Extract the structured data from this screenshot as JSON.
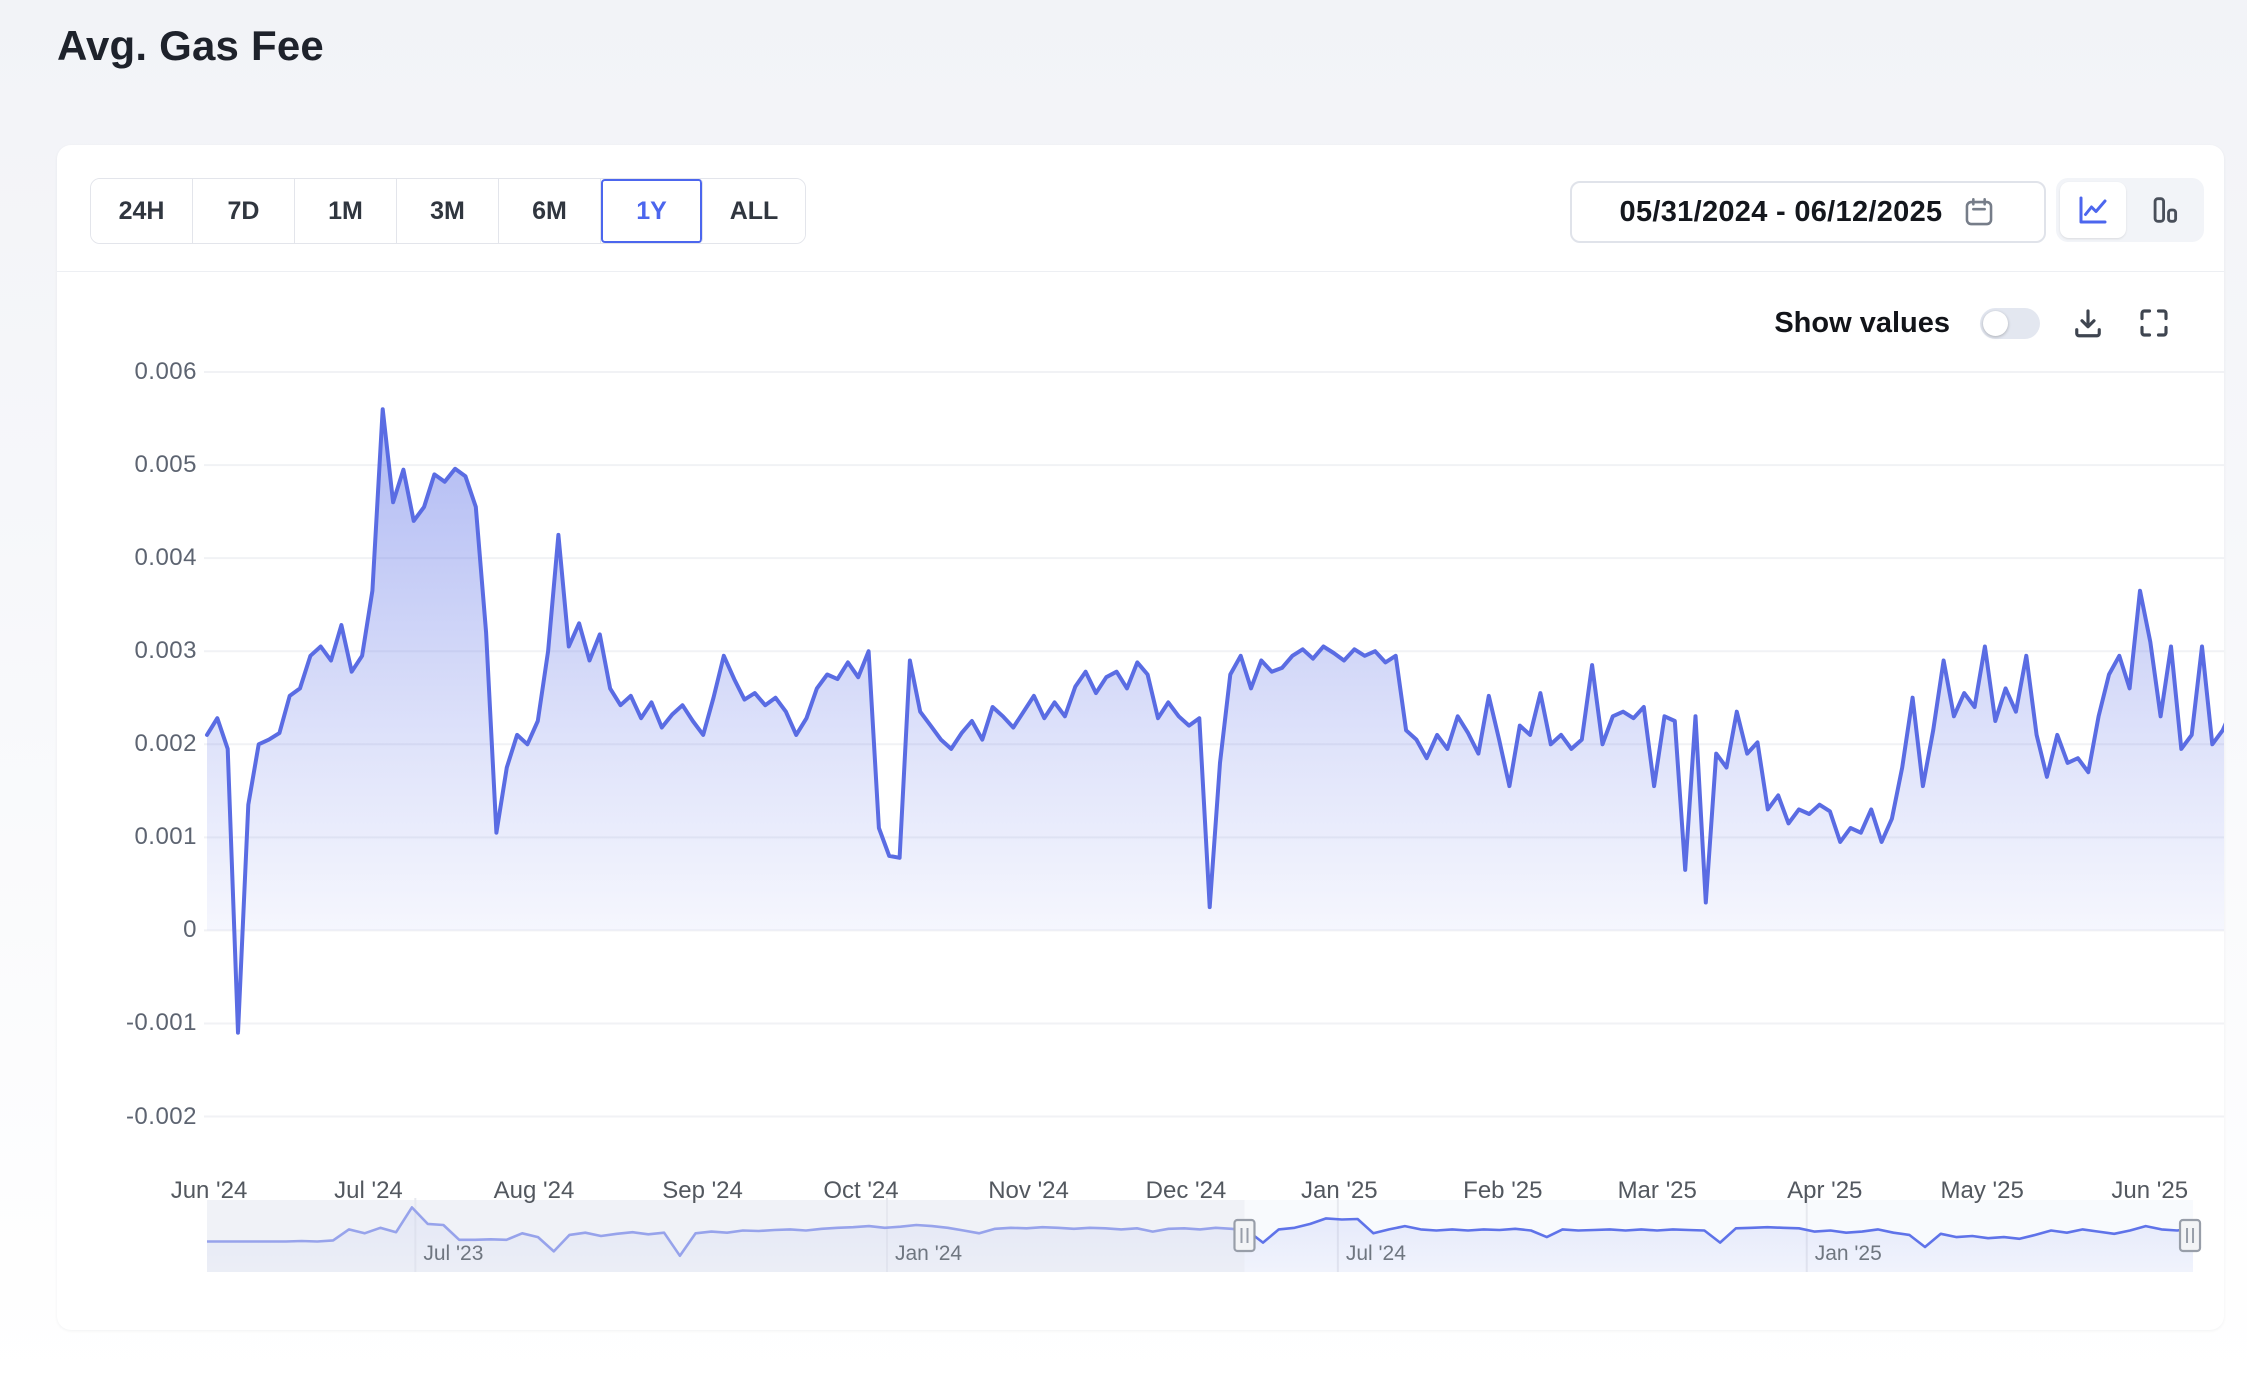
{
  "page": {
    "title": "Avg. Gas Fee"
  },
  "toolbar": {
    "ranges": [
      "24H",
      "7D",
      "1M",
      "3M",
      "6M",
      "1Y",
      "ALL"
    ],
    "active_range": "1Y",
    "date_range": "05/31/2024 - 06/12/2025",
    "chart_type_active": "line"
  },
  "controls": {
    "show_values_label": "Show values",
    "show_values_on": false
  },
  "colors": {
    "accent": "#4c66ee",
    "line": "#5a6ce3",
    "fill_top": "rgba(91,111,230,0.52)",
    "fill_bottom": "rgba(91,111,230,0.06)",
    "nav_line": "#5f73e9",
    "grid": "#f1f2f5"
  },
  "chart_data": {
    "type": "area",
    "title": "Avg. Gas Fee",
    "xlabel": "",
    "ylabel": "",
    "ylim": [
      -0.002,
      0.006
    ],
    "grid": true,
    "legend": "none",
    "y_ticks": [
      "0.006",
      "0.005",
      "0.004",
      "0.003",
      "0.002",
      "0.001",
      "0",
      "-0.001",
      "-0.002"
    ],
    "x_ticks": [
      {
        "label": "Jun '24",
        "pos": 0.001
      },
      {
        "label": "Jul '24",
        "pos": 0.0797
      },
      {
        "label": "Aug '24",
        "pos": 0.1614
      },
      {
        "label": "Sep '24",
        "pos": 0.2446
      },
      {
        "label": "Oct '24",
        "pos": 0.3228
      },
      {
        "label": "Nov '24",
        "pos": 0.4055
      },
      {
        "label": "Dec '24",
        "pos": 0.4832
      },
      {
        "label": "Jan '25",
        "pos": 0.5589
      },
      {
        "label": "Feb '25",
        "pos": 0.6396
      },
      {
        "label": "Mar '25",
        "pos": 0.7158
      },
      {
        "label": "Apr '25",
        "pos": 0.7985
      },
      {
        "label": "May '25",
        "pos": 0.8762
      },
      {
        "label": "Jun '25",
        "pos": 0.9589
      }
    ],
    "series": [
      {
        "name": "Avg. Gas Fee",
        "date_start": "05/31/2024",
        "date_end": "06/12/2025",
        "values": [
          0.0021,
          0.00228,
          0.00195,
          -0.0011,
          0.00135,
          0.002,
          0.00205,
          0.00212,
          0.00252,
          0.0026,
          0.00295,
          0.00305,
          0.0029,
          0.00328,
          0.00278,
          0.00295,
          0.00365,
          0.0056,
          0.0046,
          0.00495,
          0.0044,
          0.00455,
          0.0049,
          0.00482,
          0.00496,
          0.00488,
          0.00455,
          0.0032,
          0.00105,
          0.00175,
          0.0021,
          0.002,
          0.00225,
          0.003,
          0.00425,
          0.00305,
          0.0033,
          0.0029,
          0.00318,
          0.0026,
          0.00242,
          0.00252,
          0.00228,
          0.00245,
          0.00218,
          0.00232,
          0.00242,
          0.00225,
          0.0021,
          0.0025,
          0.00295,
          0.0027,
          0.00248,
          0.00255,
          0.00242,
          0.0025,
          0.00235,
          0.0021,
          0.00228,
          0.0026,
          0.00275,
          0.0027,
          0.00288,
          0.00272,
          0.003,
          0.0011,
          0.0008,
          0.00078,
          0.0029,
          0.00235,
          0.0022,
          0.00205,
          0.00195,
          0.00212,
          0.00225,
          0.00205,
          0.0024,
          0.0023,
          0.00218,
          0.00235,
          0.00252,
          0.00228,
          0.00245,
          0.0023,
          0.00262,
          0.00278,
          0.00255,
          0.00272,
          0.00278,
          0.0026,
          0.00288,
          0.00275,
          0.00228,
          0.00245,
          0.0023,
          0.0022,
          0.00228,
          0.00025,
          0.0018,
          0.00275,
          0.00295,
          0.0026,
          0.0029,
          0.00278,
          0.00282,
          0.00295,
          0.00302,
          0.00292,
          0.00305,
          0.00298,
          0.0029,
          0.00302,
          0.00295,
          0.003,
          0.00288,
          0.00295,
          0.00215,
          0.00205,
          0.00185,
          0.0021,
          0.00195,
          0.0023,
          0.00212,
          0.0019,
          0.00252,
          0.00205,
          0.00155,
          0.0022,
          0.0021,
          0.00255,
          0.002,
          0.0021,
          0.00195,
          0.00205,
          0.00285,
          0.002,
          0.0023,
          0.00235,
          0.00228,
          0.0024,
          0.00155,
          0.0023,
          0.00225,
          0.00065,
          0.0023,
          0.0003,
          0.0019,
          0.00175,
          0.00235,
          0.0019,
          0.00202,
          0.0013,
          0.00145,
          0.00115,
          0.0013,
          0.00125,
          0.00135,
          0.00128,
          0.00095,
          0.0011,
          0.00105,
          0.0013,
          0.00095,
          0.0012,
          0.00175,
          0.0025,
          0.00155,
          0.00215,
          0.0029,
          0.0023,
          0.00255,
          0.0024,
          0.00305,
          0.00225,
          0.0026,
          0.00235,
          0.00295,
          0.0021,
          0.00165,
          0.0021,
          0.0018,
          0.00185,
          0.0017,
          0.0023,
          0.00275,
          0.00295,
          0.0026,
          0.00365,
          0.0031,
          0.0023,
          0.00305,
          0.00195,
          0.0021,
          0.00305,
          0.002,
          0.00215,
          0.0024
        ]
      }
    ],
    "navigator": {
      "range_approx": [
        "Apr '23",
        "Jun '25"
      ],
      "window": [
        0.5224,
        0.9985
      ],
      "ticks": [
        {
          "label": "Jul '23",
          "pos": 0.1049
        },
        {
          "label": "Jan '24",
          "pos": 0.3424
        },
        {
          "label": "Jul '24",
          "pos": 0.5694
        },
        {
          "label": "Jan '25",
          "pos": 0.8055
        }
      ],
      "scale_note": "relative unlabeled scale 0-1",
      "values": [
        0.3,
        0.3,
        0.3,
        0.3,
        0.3,
        0.3,
        0.31,
        0.3,
        0.32,
        0.52,
        0.45,
        0.55,
        0.47,
        0.92,
        0.62,
        0.6,
        0.33,
        0.33,
        0.34,
        0.33,
        0.45,
        0.38,
        0.12,
        0.42,
        0.46,
        0.4,
        0.44,
        0.47,
        0.43,
        0.46,
        0.04,
        0.45,
        0.48,
        0.46,
        0.5,
        0.49,
        0.51,
        0.52,
        0.5,
        0.53,
        0.55,
        0.56,
        0.58,
        0.55,
        0.57,
        0.6,
        0.58,
        0.55,
        0.5,
        0.45,
        0.53,
        0.55,
        0.54,
        0.56,
        0.55,
        0.53,
        0.55,
        0.54,
        0.52,
        0.54,
        0.48,
        0.53,
        0.54,
        0.52,
        0.55,
        0.53,
        0.5,
        0.28,
        0.52,
        0.55,
        0.62,
        0.72,
        0.7,
        0.71,
        0.45,
        0.52,
        0.58,
        0.52,
        0.5,
        0.52,
        0.5,
        0.52,
        0.51,
        0.53,
        0.5,
        0.38,
        0.52,
        0.5,
        0.51,
        0.52,
        0.5,
        0.52,
        0.5,
        0.52,
        0.51,
        0.5,
        0.28,
        0.54,
        0.55,
        0.56,
        0.55,
        0.54,
        0.48,
        0.5,
        0.46,
        0.48,
        0.52,
        0.46,
        0.42,
        0.2,
        0.44,
        0.38,
        0.4,
        0.36,
        0.38,
        0.35,
        0.42,
        0.5,
        0.46,
        0.52,
        0.48,
        0.44,
        0.5,
        0.58,
        0.52,
        0.5,
        0.54
      ]
    }
  }
}
